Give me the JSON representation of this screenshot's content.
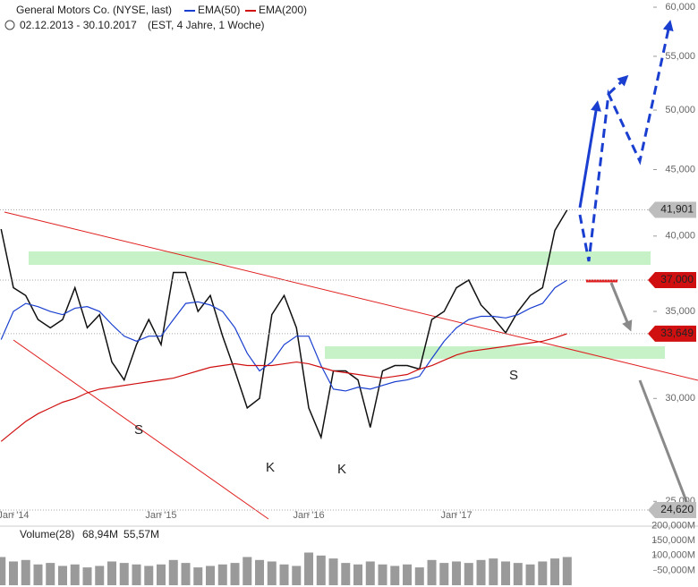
{
  "chart_data": [
    {
      "type": "line",
      "log": true,
      "grid": false,
      "subtitle": "02.12.2013 - 30.10.2017",
      "subtitle_note": "(EST, 4 Jahre, 1 Woche)",
      "x": [
        0,
        1,
        2,
        3,
        4,
        5,
        6,
        7,
        8,
        9,
        10,
        11,
        12,
        13,
        14,
        15,
        16,
        17,
        18,
        19,
        20,
        21,
        22,
        23,
        24,
        25,
        26,
        27,
        28,
        29,
        30,
        31,
        32,
        33,
        34,
        35,
        36,
        37,
        38,
        39,
        40,
        41,
        42,
        43,
        44,
        45,
        46
      ],
      "xlim": [
        -0.09,
        52.85
      ],
      "xticks": [
        {
          "value": 1,
          "label": "Jan '14"
        },
        {
          "value": 13,
          "label": "Jan '15"
        },
        {
          "value": 25,
          "label": "Jan '16"
        },
        {
          "value": 37,
          "label": "Jan '17"
        }
      ],
      "ylim": [
        24.54,
        60.77
      ],
      "yticks": [
        {
          "value": 25,
          "label": "25,000"
        },
        {
          "value": 30,
          "label": "30,000"
        },
        {
          "value": 35,
          "label": "35,000"
        },
        {
          "value": 40,
          "label": "40,000"
        },
        {
          "value": 45,
          "label": "45,000"
        },
        {
          "value": 50,
          "label": "50,000"
        },
        {
          "value": 55,
          "label": "55,000"
        },
        {
          "value": 60,
          "label": "60,000"
        }
      ],
      "series": [
        {
          "name": "General Motors Co. (NYSE, last)",
          "color": "#111111",
          "values": [
            40.5,
            36.5,
            36,
            34.5,
            34,
            34.5,
            36.5,
            34,
            34.8,
            32,
            31,
            33,
            34.5,
            33,
            37.5,
            37.5,
            35,
            36,
            33.5,
            31.5,
            29.5,
            30,
            34.8,
            36,
            34,
            29.5,
            28,
            31.5,
            31.5,
            31,
            28.5,
            31.5,
            31.8,
            31.8,
            31.6,
            34.5,
            35,
            36.5,
            37,
            35.4,
            34.6,
            33.7,
            35,
            36,
            36.5,
            40.4,
            41.901
          ]
        },
        {
          "name": "EMA(50)",
          "color": "#1a3fd0",
          "values": [
            33.3,
            35,
            35.5,
            35.3,
            35,
            34.8,
            35.2,
            35.3,
            35,
            34.2,
            33.5,
            33.2,
            33.5,
            33.5,
            34.5,
            35.5,
            35.6,
            35.4,
            35,
            34,
            32.5,
            31.5,
            32,
            33,
            33.5,
            33.5,
            31.8,
            30.5,
            30.4,
            30.6,
            30.5,
            30.7,
            30.9,
            31,
            31.2,
            32.2,
            33.2,
            34,
            34.5,
            34.7,
            34.7,
            34.6,
            34.8,
            35.2,
            35.5,
            36.5,
            37
          ]
        },
        {
          "name": "EMA(200)",
          "color": "#d01010",
          "values": [
            27.8,
            28.3,
            28.8,
            29.2,
            29.5,
            29.8,
            30,
            30.3,
            30.5,
            30.6,
            30.7,
            30.8,
            30.9,
            31,
            31.1,
            31.3,
            31.5,
            31.7,
            31.8,
            31.9,
            31.8,
            31.8,
            31.8,
            31.9,
            32,
            31.9,
            31.7,
            31.5,
            31.4,
            31.3,
            31.2,
            31.1,
            31.2,
            31.3,
            31.6,
            31.8,
            32.1,
            32.4,
            32.6,
            32.7,
            32.8,
            32.9,
            33,
            33.1,
            33.2,
            33.4,
            33.649
          ]
        }
      ],
      "price_tags": [
        {
          "value": 41.901,
          "label": "41,901",
          "color": "#bdbdbd"
        },
        {
          "value": 37,
          "label": "37,000",
          "color": "#d01010"
        },
        {
          "value": 33.649,
          "label": "33,649",
          "color": "#d01010"
        },
        {
          "value": 24.62,
          "label": "24,620",
          "color": "#bdbdbd"
        }
      ],
      "annotations": [
        "S",
        "K",
        "K",
        "S"
      ]
    },
    {
      "type": "bar",
      "title": "Volume(28)",
      "stats": [
        {
          "label": "68,94M",
          "color": "#222222"
        },
        {
          "label": "55,57M",
          "color": "#e89a00"
        }
      ],
      "color": "#9a9a9a",
      "values": [
        95,
        80,
        85,
        70,
        75,
        65,
        70,
        60,
        65,
        80,
        75,
        70,
        65,
        70,
        85,
        75,
        60,
        65,
        70,
        75,
        95,
        85,
        80,
        70,
        65,
        110,
        100,
        90,
        75,
        70,
        80,
        70,
        65,
        70,
        60,
        85,
        75,
        80,
        75,
        85,
        90,
        80,
        75,
        70,
        80,
        90,
        95
      ],
      "ylim": [
        0,
        205
      ],
      "yticks": [
        {
          "value": 50,
          "label": "50,000M"
        },
        {
          "value": 100,
          "label": "100,000M"
        },
        {
          "value": 150,
          "label": "150,000M"
        },
        {
          "value": 200,
          "label": "200,000M"
        }
      ]
    }
  ]
}
